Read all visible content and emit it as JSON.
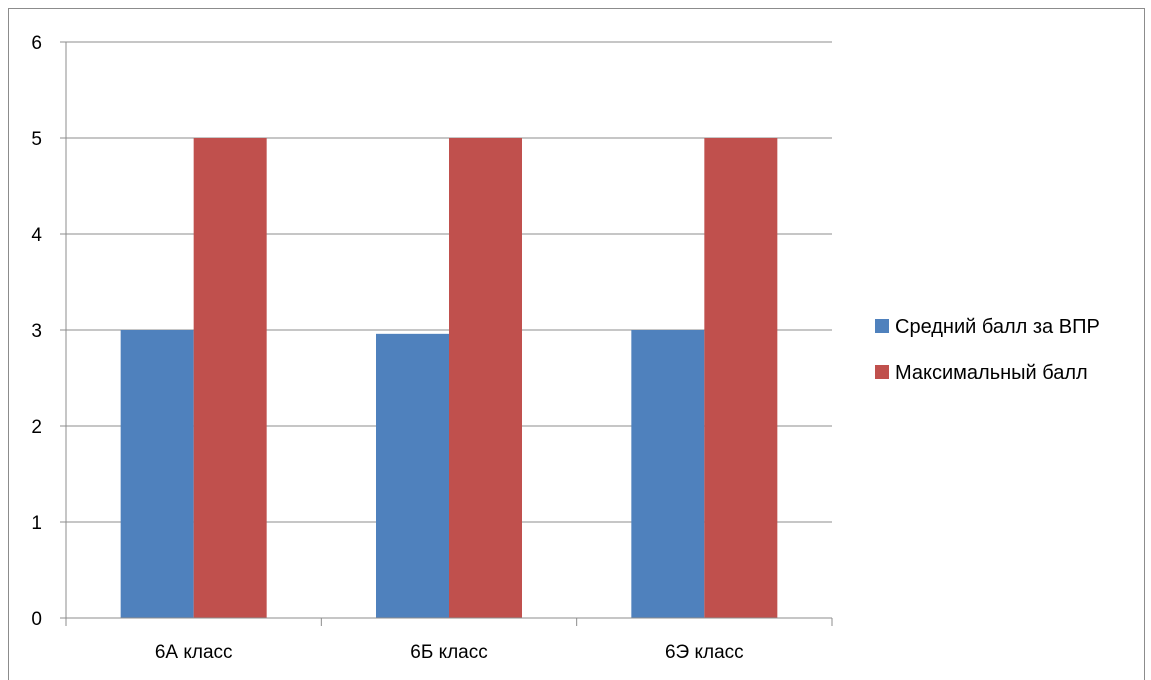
{
  "chart_data": {
    "type": "bar",
    "title": "",
    "xlabel": "",
    "ylabel": "",
    "categories": [
      "6А класс",
      "6Б класс",
      "6Э класс"
    ],
    "series": [
      {
        "name": "Средний балл за ВПР",
        "values": [
          3.0,
          2.96,
          3.0
        ],
        "color": "#4F81BD"
      },
      {
        "name": "Максимальный балл",
        "values": [
          5,
          5,
          5
        ],
        "color": "#C0504D"
      }
    ],
    "ylim": [
      0,
      6
    ],
    "yticks": [
      "0",
      "1",
      "2",
      "3",
      "4",
      "5",
      "6"
    ],
    "grid": true,
    "legend_position": "right"
  }
}
